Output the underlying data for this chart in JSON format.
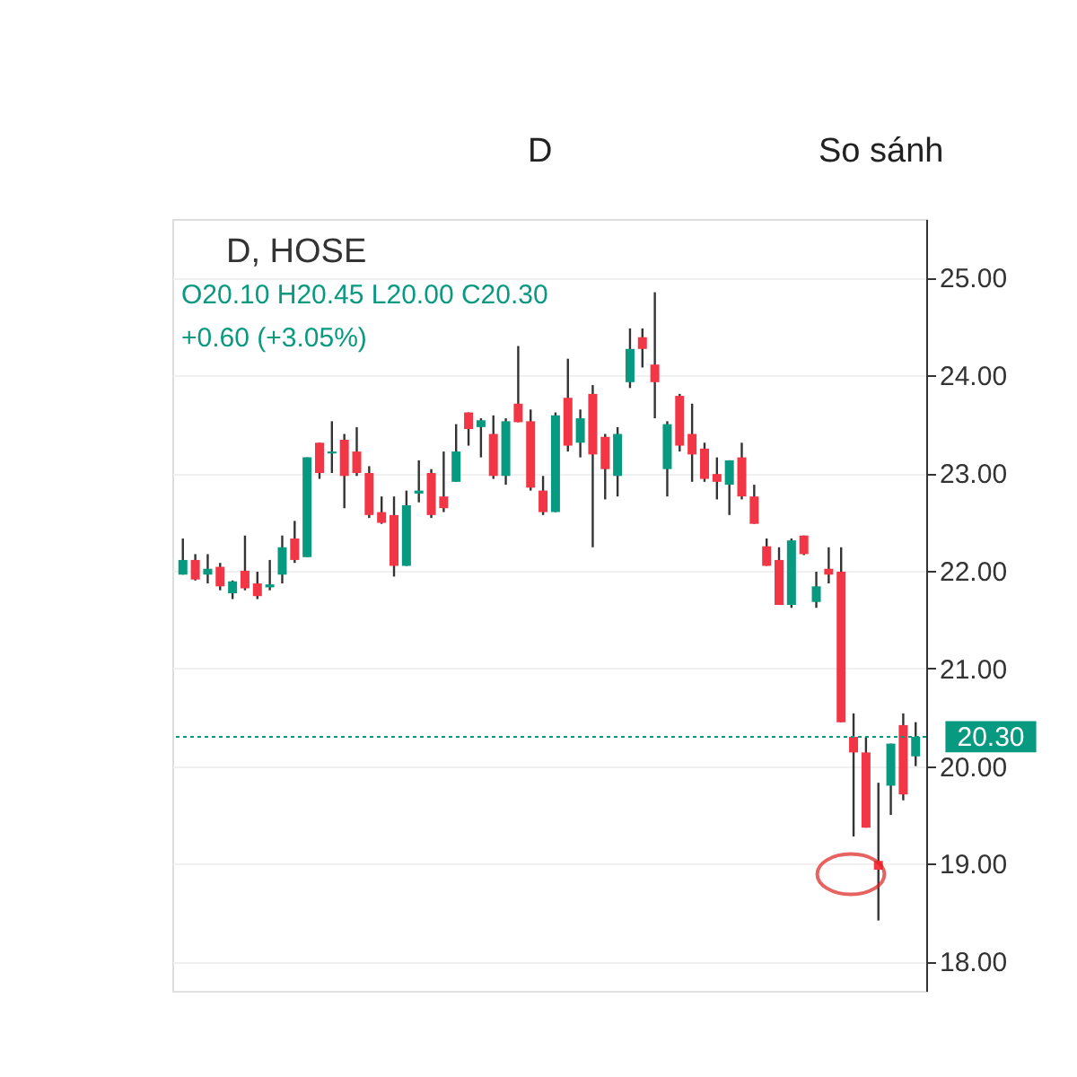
{
  "chart_data": {
    "type": "candlestick",
    "title": "D, HOSE",
    "annotations": [
      "O20.10 H20.45 L20.00 C20.30",
      "+0.60 (+3.05%)",
      "D",
      "So sánh"
    ],
    "categories": [
      null,
      null,
      null,
      null,
      null,
      null,
      null,
      null,
      null,
      null,
      null,
      null,
      null,
      null,
      null,
      null,
      null,
      null,
      null,
      null,
      null,
      null,
      null,
      null,
      null,
      null,
      null,
      null,
      null,
      null,
      null,
      null,
      null,
      null,
      null,
      null,
      null,
      null,
      null,
      null,
      null,
      null,
      null,
      null,
      null,
      null,
      null,
      null,
      null,
      null,
      null,
      null,
      null,
      null,
      null,
      null,
      null,
      null,
      null,
      null
    ],
    "ohlc": [
      [
        21.96,
        22.33,
        21.96,
        22.11
      ],
      [
        22.11,
        22.17,
        21.9,
        21.91
      ],
      [
        21.96,
        22.17,
        21.87,
        22.02
      ],
      [
        22.04,
        22.08,
        21.8,
        21.84
      ],
      [
        21.77,
        21.9,
        21.71,
        21.89
      ],
      [
        22.0,
        22.36,
        21.8,
        21.82
      ],
      [
        21.87,
        21.99,
        21.71,
        21.74
      ],
      [
        21.83,
        22.11,
        21.8,
        21.86
      ],
      [
        21.96,
        22.36,
        21.87,
        22.24
      ],
      [
        22.33,
        22.51,
        22.08,
        22.11
      ],
      [
        22.14,
        23.16,
        22.14,
        23.16
      ],
      [
        23.31,
        23.31,
        22.94,
        23.0
      ],
      [
        23.2,
        23.53,
        23.0,
        23.22
      ],
      [
        23.34,
        23.4,
        22.64,
        22.97
      ],
      [
        23.22,
        23.47,
        22.97,
        23.0
      ],
      [
        23.0,
        23.07,
        22.54,
        22.57
      ],
      [
        22.6,
        22.76,
        22.48,
        22.49
      ],
      [
        22.57,
        22.76,
        21.94,
        22.05
      ],
      [
        22.05,
        22.82,
        22.05,
        22.67
      ],
      [
        22.79,
        23.13,
        22.7,
        22.82
      ],
      [
        23.0,
        23.04,
        22.54,
        22.57
      ],
      [
        22.76,
        23.22,
        22.6,
        22.64
      ],
      [
        22.91,
        23.5,
        22.91,
        23.22
      ],
      [
        23.62,
        23.62,
        23.28,
        23.45
      ],
      [
        23.47,
        23.56,
        23.16,
        23.54
      ],
      [
        23.4,
        23.59,
        22.94,
        22.97
      ],
      [
        22.97,
        23.56,
        22.88,
        23.53
      ],
      [
        23.71,
        24.3,
        23.52,
        23.52
      ],
      [
        23.53,
        23.65,
        22.82,
        22.85
      ],
      [
        22.82,
        22.97,
        22.57,
        22.6
      ],
      [
        22.6,
        23.62,
        22.6,
        23.59
      ],
      [
        23.77,
        24.17,
        23.22,
        23.28
      ],
      [
        23.31,
        23.65,
        23.16,
        23.56
      ],
      [
        23.81,
        23.9,
        22.24,
        23.19
      ],
      [
        23.37,
        23.4,
        22.73,
        23.04
      ],
      [
        22.97,
        23.47,
        22.76,
        23.4
      ],
      [
        23.93,
        24.48,
        23.87,
        24.27
      ],
      [
        24.39,
        24.48,
        24.08,
        24.27
      ],
      [
        24.11,
        24.85,
        23.56,
        23.93
      ],
      [
        23.04,
        23.53,
        22.76,
        23.5
      ],
      [
        23.79,
        23.81,
        23.22,
        23.28
      ],
      [
        23.4,
        23.71,
        22.91,
        23.19
      ],
      [
        23.25,
        23.31,
        22.91,
        22.94
      ],
      [
        22.99,
        23.16,
        22.73,
        22.91
      ],
      [
        22.88,
        23.13,
        22.57,
        23.13
      ],
      [
        23.16,
        23.31,
        22.73,
        22.76
      ],
      [
        22.76,
        22.88,
        22.48,
        22.48
      ],
      [
        22.25,
        22.33,
        22.05,
        22.05
      ],
      [
        22.11,
        22.24,
        21.65,
        21.65
      ],
      [
        21.65,
        22.33,
        21.62,
        22.31
      ],
      [
        22.36,
        22.36,
        22.16,
        22.17
      ],
      [
        21.68,
        21.99,
        21.62,
        21.84
      ],
      [
        22.02,
        22.24,
        21.87,
        21.96
      ],
      [
        21.99,
        22.24,
        20.45,
        20.45
      ],
      [
        20.3,
        20.54,
        19.28,
        20.14
      ],
      [
        20.14,
        20.3,
        19.37,
        19.37
      ],
      [
        19.03,
        19.83,
        18.42,
        18.94
      ],
      [
        19.8,
        20.23,
        19.5,
        20.23
      ],
      [
        20.42,
        20.54,
        19.65,
        19.71
      ],
      [
        20.1,
        20.45,
        20.0,
        20.3
      ]
    ],
    "colors": [
      "#089981",
      "#f23645",
      "#089981",
      "#f23645",
      "#089981",
      "#f23645",
      "#f23645",
      "#089981",
      "#089981",
      "#f23645",
      "#089981",
      "#f23645",
      "#089981",
      "#f23645",
      "#f23645",
      "#f23645",
      "#f23645",
      "#f23645",
      "#089981",
      "#089981",
      "#f23645",
      "#f23645",
      "#089981",
      "#f23645",
      "#089981",
      "#f23645",
      "#089981",
      "#f23645",
      "#f23645",
      "#f23645",
      "#089981",
      "#f23645",
      "#089981",
      "#f23645",
      "#f23645",
      "#089981",
      "#089981",
      "#f23645",
      "#f23645",
      "#089981",
      "#f23645",
      "#f23645",
      "#f23645",
      "#f23645",
      "#089981",
      "#f23645",
      "#f23645",
      "#f23645",
      "#f23645",
      "#089981",
      "#f23645",
      "#089981",
      "#f23645",
      "#f23645",
      "#f23645",
      "#f23645",
      "#f23645",
      "#089981",
      "#f23645",
      "#089981"
    ],
    "ylim": [
      17.7,
      25.6
    ],
    "yticks": [
      {
        "value": 18,
        "label": "18.00"
      },
      {
        "value": 19,
        "label": "19.00"
      },
      {
        "value": 20,
        "label": "20.00"
      },
      {
        "value": 21,
        "label": "21.00"
      },
      {
        "value": 22,
        "label": "22.00"
      },
      {
        "value": 23,
        "label": "23.00"
      },
      {
        "value": 24,
        "label": "24.00"
      },
      {
        "value": 25,
        "label": "25.00"
      }
    ],
    "ref_lines": [
      {
        "axis": "y",
        "value": 20.3,
        "label": "20.30",
        "color": "#089981",
        "line_style": "dotted"
      }
    ],
    "grid": "y",
    "tick_labels": "y"
  }
}
